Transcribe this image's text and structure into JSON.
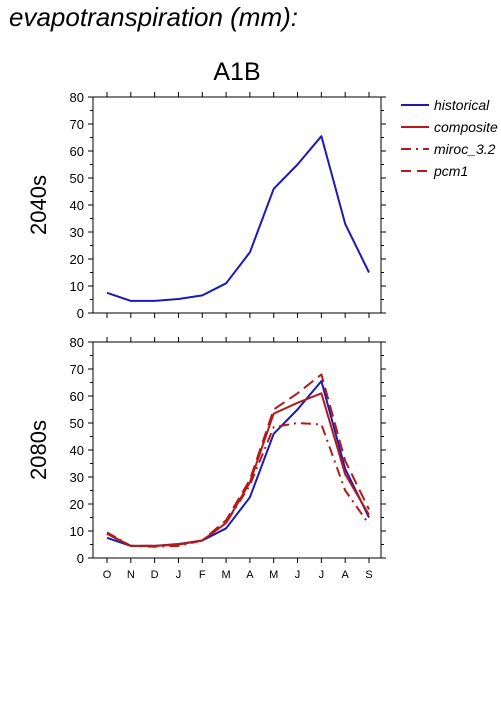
{
  "page_heading": "evapotranspiration (mm):",
  "colors": {
    "historical": "#1a1ab4",
    "projection": "#b41a1a"
  },
  "chart_data": [
    {
      "type": "line",
      "title": "A1B",
      "ylabel": "2040s",
      "xlabel": "",
      "categories": [
        "O",
        "N",
        "D",
        "J",
        "F",
        "M",
        "A",
        "M",
        "J",
        "J",
        "A",
        "S"
      ],
      "ylim": [
        0,
        80
      ],
      "yticks": [
        0,
        10,
        20,
        30,
        40,
        50,
        60,
        70,
        80
      ],
      "series": [
        {
          "name": "historical",
          "style": "solid",
          "color": "#1a1ab4",
          "values": [
            7.5,
            4.5,
            4.5,
            5.2,
            6.5,
            11,
            22.5,
            46,
            55,
            65.5,
            33,
            15
          ]
        }
      ]
    },
    {
      "type": "line",
      "title": "",
      "ylabel": "2080s",
      "xlabel": "",
      "categories": [
        "O",
        "N",
        "D",
        "J",
        "F",
        "M",
        "A",
        "M",
        "J",
        "J",
        "A",
        "S"
      ],
      "ylim": [
        0,
        80
      ],
      "yticks": [
        0,
        10,
        20,
        30,
        40,
        50,
        60,
        70,
        80
      ],
      "series": [
        {
          "name": "historical",
          "style": "solid",
          "color": "#1a1ab4",
          "values": [
            7.5,
            4.5,
            4.5,
            5.2,
            6.5,
            11,
            22.5,
            46,
            55,
            65.5,
            33,
            15
          ]
        },
        {
          "name": "composite",
          "style": "solid",
          "color": "#b41a1a",
          "values": [
            9,
            4.5,
            4.5,
            5,
            6.5,
            13,
            28,
            53.5,
            57.5,
            61,
            31,
            16
          ]
        },
        {
          "name": "miroc_3.2",
          "style": "dashdot",
          "color": "#b41a1a",
          "values": [
            9.5,
            4.5,
            4.2,
            4.5,
            6.5,
            13,
            27,
            48.5,
            50,
            49.5,
            25,
            12.5
          ]
        },
        {
          "name": "pcm1",
          "style": "dashed",
          "color": "#b41a1a",
          "values": [
            9,
            4.5,
            4.5,
            5,
            6.5,
            14,
            29,
            55,
            61,
            68,
            36,
            18
          ]
        }
      ]
    }
  ],
  "legend": [
    {
      "label": "historical",
      "style": "solid",
      "color": "#1a1ab4"
    },
    {
      "label": "composite",
      "style": "solid",
      "color": "#b41a1a"
    },
    {
      "label": "miroc_3.2",
      "style": "dashdot",
      "color": "#b41a1a"
    },
    {
      "label": "pcm1",
      "style": "dashed",
      "color": "#b41a1a"
    }
  ]
}
